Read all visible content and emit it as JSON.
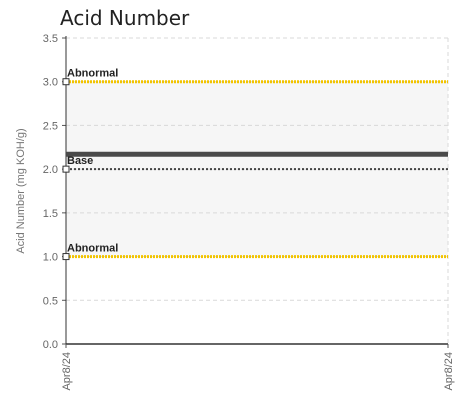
{
  "chart_data": {
    "type": "line",
    "title": "Acid Number",
    "ylabel": "Acid Number (mg KOH/g)",
    "xlabel": "",
    "ylim": [
      0,
      3.5
    ],
    "yticks": [
      "0.0",
      "0.5",
      "1.0",
      "1.5",
      "2.0",
      "2.5",
      "3.0",
      "3.5"
    ],
    "x_tick_labels": [
      "Apr8/24",
      "Apr8/24"
    ],
    "grid": true,
    "legend": "none",
    "reference_lines": [
      {
        "label": "Abnormal",
        "value": 3.0,
        "color": "#f2c400",
        "style": "dotted",
        "marker": "open-square"
      },
      {
        "label": "Base",
        "value": 2.0,
        "color": "#444444",
        "style": "dotted",
        "marker": "open-square"
      },
      {
        "label": "Abnormal",
        "value": 1.0,
        "color": "#f2c400",
        "style": "dotted",
        "marker": "open-square"
      }
    ],
    "series": [
      {
        "values": [
          2.17,
          2.17
        ],
        "color": "#4a4a4a"
      }
    ],
    "normal_band": [
      1.0,
      3.0
    ]
  }
}
